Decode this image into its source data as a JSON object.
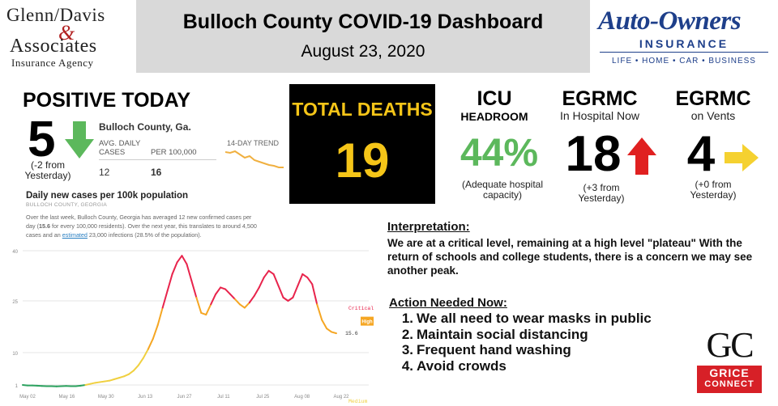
{
  "header": {
    "title": "Bulloch County COVID-19 Dashboard",
    "date": "August 23, 2020",
    "left_logo": {
      "line1": "Glenn/Davis",
      "amp": "&",
      "line2": "Associates",
      "line3": "Insurance Agency"
    },
    "right_logo": {
      "brand": "Auto-Owners",
      "insurance": "INSURANCE",
      "tagline": "LIFE • HOME • CAR • BUSINESS",
      "color": "#1e3f8a"
    }
  },
  "positive_today": {
    "title": "POSITIVE TODAY",
    "value": "5",
    "change": "(-2 from Yesterday)",
    "arrow_icon": "down-arrow-icon",
    "arrow_color": "#5cb85c"
  },
  "nyt_card": {
    "county": "Bulloch County, Ga.",
    "col1_label": "AVG. DAILY CASES",
    "col2_label": "PER 100,000",
    "col1_value": "12",
    "col2_value": "16",
    "trend_label": "14-DAY TREND"
  },
  "total_deaths": {
    "label": "TOTAL DEATHS",
    "value": "19",
    "color": "#f5c518"
  },
  "icu": {
    "title": "ICU",
    "subtitle": "HEADROOM",
    "value": "44%",
    "value_color": "#5cb85c",
    "note": "(Adequate hospital capacity)"
  },
  "egrmc_hospital": {
    "title": "EGRMC",
    "subtitle": "In Hospital Now",
    "value": "18",
    "note": "(+3 from Yesterday)",
    "arrow_icon": "up-arrow-icon",
    "arrow_color": "#e02020"
  },
  "egrmc_vents": {
    "title": "EGRMC",
    "subtitle": "on Vents",
    "value": "4",
    "note": "(+0 from Yesterday)",
    "arrow_icon": "right-arrow-icon",
    "arrow_color": "#f5d130"
  },
  "chart_section": {
    "title": "Daily new cases per 100k population",
    "subtitle": "BULLOCH COUNTY, GEORGIA",
    "desc_part1": "Over the last week, Bulloch County, Georgia has averaged 12 new confirmed cases per day (",
    "desc_bold": "15.6",
    "desc_part2": " for every 100,000 residents). Over the next year, this translates to around 4,500 cases and an ",
    "desc_link": "estimated",
    "desc_part3": " 23,000 infections (28.5% of the population)."
  },
  "chart_data": {
    "type": "line",
    "title": "Daily new cases per 100k population",
    "xlabel": "",
    "ylabel": "",
    "x_ticks": [
      "May 02",
      "May 16",
      "May 30",
      "Jun 13",
      "Jun 27",
      "Jul 11",
      "Jul 25",
      "Aug 08",
      "Aug 22"
    ],
    "y_ticks": [
      1,
      10,
      25,
      40
    ],
    "y_tick_values": [
      1,
      10,
      25,
      40
    ],
    "ylim": [
      0,
      40
    ],
    "zones": [
      "Critical",
      "High",
      "Medium"
    ],
    "zone_colors": {
      "Critical": "#e8244c",
      "High": "#f5a623",
      "Medium": "#f0d040",
      "Low": "#2ca25f"
    },
    "last_value_label": "15.6",
    "high_badge": "High",
    "series": [
      {
        "values": [
          1.0,
          0.8,
          0.8,
          0.7,
          0.6,
          0.5,
          0.5,
          0.4,
          0.5,
          0.6,
          0.5,
          0.5,
          0.7,
          1.0,
          1.3,
          1.6,
          1.8,
          2.0,
          2.2,
          2.6,
          3.0,
          3.4,
          4.0,
          5.0,
          6.5,
          8.5,
          11.0,
          14.0,
          18.0,
          23.0,
          28.0,
          33.0,
          36.5,
          38.5,
          36.0,
          31.0,
          26.0,
          21.5,
          21.0,
          24.0,
          27.0,
          29.0,
          28.5,
          27.0,
          25.5,
          24.0,
          23.0,
          24.5,
          26.5,
          29.0,
          32.0,
          34.0,
          33.0,
          29.5,
          26.0,
          25.0,
          26.0,
          29.5,
          33.0,
          32.0,
          30.0,
          24.0,
          19.5,
          17.0,
          16.0,
          15.6
        ]
      }
    ]
  },
  "interpretation": {
    "heading": "Interpretation:",
    "text": "We are at a critical level, remaining at a high level \"plateau\" With the return of schools and college students, there is a concern we may see another peak."
  },
  "action": {
    "heading": "Action Needed Now:",
    "items": [
      "We all need to wear masks in public",
      "Maintain social distancing",
      "Frequent hand washing",
      "Avoid crowds"
    ]
  },
  "gc_logo": {
    "letters": "GC",
    "line1": "GRICE",
    "line2": "CONNECT",
    "color": "#d72027"
  }
}
